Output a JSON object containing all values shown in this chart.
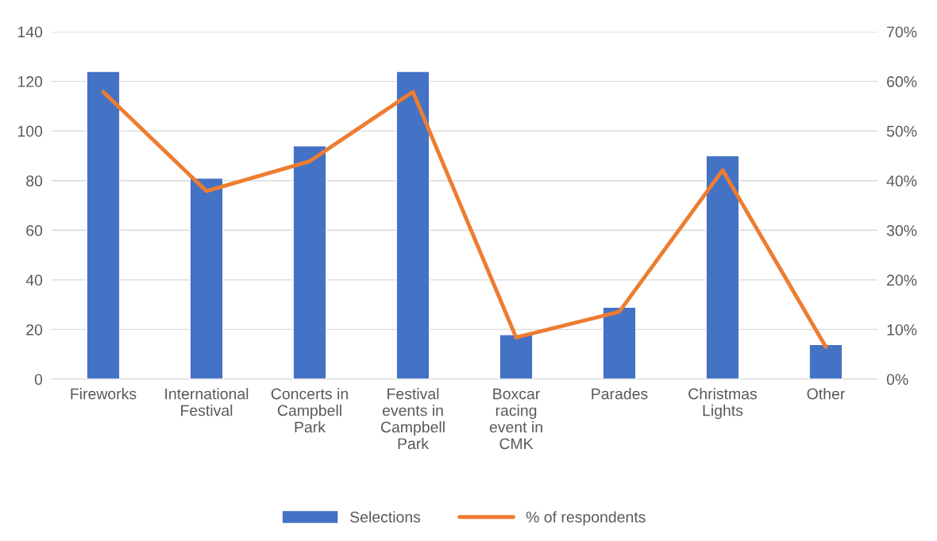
{
  "chart_data": {
    "type": "bar",
    "categories": [
      "Fireworks",
      "International Festival",
      "Concerts in Campbell Park",
      "Festival events in Campbell Park",
      "Boxcar racing event in CMK",
      "Parades",
      "Christmas Lights",
      "Other"
    ],
    "series": [
      {
        "name": "Selections",
        "color": "#4472c4",
        "values": [
          124,
          81,
          94,
          124,
          18,
          29,
          90,
          14
        ]
      },
      {
        "name": "% of respondents",
        "color": "#ed7d31",
        "type": "line",
        "axis": "y2",
        "values": [
          57.9,
          37.9,
          43.9,
          57.9,
          8.4,
          13.6,
          42.1,
          6.5
        ]
      }
    ],
    "ylim": [
      0,
      140
    ],
    "yticks": [
      0,
      20,
      40,
      60,
      80,
      100,
      120,
      140
    ],
    "y2lim": [
      0,
      70
    ],
    "y2ticks": [
      {
        "value": 0,
        "label": "0%"
      },
      {
        "value": 10,
        "label": "10%"
      },
      {
        "value": 20,
        "label": "20%"
      },
      {
        "value": 30,
        "label": "30%"
      },
      {
        "value": 40,
        "label": "40%"
      },
      {
        "value": 50,
        "label": "50%"
      },
      {
        "value": 60,
        "label": "60%"
      },
      {
        "value": 70,
        "label": "70%"
      }
    ],
    "grid": "y",
    "legend": "bottom",
    "marker": "none",
    "line_style": "solid"
  }
}
